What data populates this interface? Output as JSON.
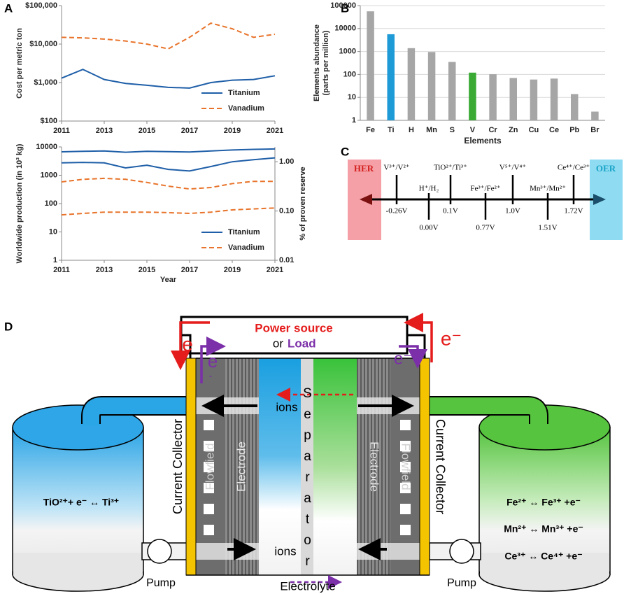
{
  "chart_data": [
    {
      "type": "line",
      "panel_label": "A",
      "ylabel": "Cost per metric ton",
      "x": [
        2011,
        2012,
        2013,
        2014,
        2015,
        2016,
        2017,
        2018,
        2019,
        2020,
        2021
      ],
      "xlim": [
        2011,
        2021
      ],
      "xticks": [
        2011,
        2013,
        2015,
        2017,
        2019,
        2021
      ],
      "ylim": [
        100,
        100000
      ],
      "log_y": true,
      "yticks": [
        {
          "value": 100,
          "label": "$100"
        },
        {
          "value": 1000,
          "label": "$1,000"
        },
        {
          "value": 10000,
          "label": "$10,000"
        },
        {
          "value": 100000,
          "label": "$100,000"
        }
      ],
      "legend": "lower right",
      "series": [
        {
          "name": "Titanium",
          "color": "#1f5fa8",
          "dashed": false,
          "values": [
            1300,
            2200,
            1200,
            950,
            850,
            750,
            720,
            1000,
            1150,
            1200,
            1500
          ]
        },
        {
          "name": "Vanadium",
          "color": "#e8732a",
          "dashed": true,
          "values": [
            15000,
            14500,
            13500,
            12000,
            10000,
            7500,
            15000,
            35000,
            25000,
            15000,
            18000
          ]
        }
      ]
    },
    {
      "type": "line",
      "xlabel": "Year",
      "ylabel": "Worldwide production (in 10³ kg)",
      "y2label": "% of proven reserve",
      "x": [
        2011,
        2012,
        2013,
        2014,
        2015,
        2016,
        2017,
        2018,
        2019,
        2020,
        2021
      ],
      "xlim": [
        2011,
        2021
      ],
      "xticks": [
        2011,
        2013,
        2015,
        2017,
        2019,
        2021
      ],
      "ylim": [
        1,
        10000
      ],
      "log_y": true,
      "yticks": [
        1,
        10,
        100,
        1000,
        10000
      ],
      "y2lim": [
        0.01,
        2
      ],
      "log_y2": true,
      "y2ticks": [
        0.01,
        {
          "value": 0.1,
          "label": "0.10"
        },
        {
          "value": 1,
          "label": "1.00"
        }
      ],
      "legend": "lower right",
      "series": [
        {
          "name": "Titanium",
          "color": "#1f5fa8",
          "dashed": false,
          "values": [
            6700,
            7000,
            7200,
            6500,
            7000,
            6800,
            6600,
            7200,
            7800,
            8200,
            8500
          ]
        },
        {
          "name": "Vanadium",
          "color": "#e8732a",
          "dashed": true,
          "values": [
            40,
            45,
            50,
            50,
            50,
            48,
            45,
            50,
            60,
            65,
            70
          ]
        },
        {
          "color": "#1f5fa8",
          "dashed": false,
          "axis": "y2",
          "values": [
            0.95,
            0.97,
            0.95,
            0.75,
            0.85,
            0.7,
            0.65,
            0.8,
            1.0,
            1.1,
            1.2
          ]
        },
        {
          "color": "#e8732a",
          "dashed": true,
          "axis": "y2",
          "values": [
            0.39,
            0.44,
            0.46,
            0.44,
            0.38,
            0.32,
            0.28,
            0.3,
            0.36,
            0.4,
            0.4
          ]
        }
      ]
    },
    {
      "type": "bar",
      "panel_label": "B",
      "ylabel": [
        "Elements abundance",
        "(parts per million)"
      ],
      "xlabel": "Elements",
      "categories": [
        "Fe",
        "Ti",
        "H",
        "Mn",
        "S",
        "V",
        "Cr",
        "Zn",
        "Cu",
        "Ce",
        "Pb",
        "Br"
      ],
      "values": [
        56300,
        5650,
        1400,
        950,
        350,
        120,
        102,
        70,
        60,
        66,
        14,
        2.4
      ],
      "colors": [
        "#a6a6a6",
        "#1e9ad6",
        "#a6a6a6",
        "#a6a6a6",
        "#a6a6a6",
        "#3aaa35",
        "#a6a6a6",
        "#a6a6a6",
        "#a6a6a6",
        "#a6a6a6",
        "#a6a6a6",
        "#a6a6a6"
      ],
      "ylim": [
        1,
        100000
      ],
      "log_y": true,
      "yticks": [
        1,
        10,
        100,
        1000,
        10000,
        100000
      ],
      "grid": true
    }
  ],
  "panel_c": {
    "label": "C",
    "her": "HER",
    "oer": "OER",
    "couples": [
      {
        "couple": "V³⁺/V²⁺",
        "potential": "-0.26V"
      },
      {
        "couple": "H⁺/H₂",
        "potential": "0.00V"
      },
      {
        "couple": "TiO²⁺/Ti³⁺",
        "potential": "0.1V"
      },
      {
        "couple": "Fe³⁺/Fe²⁺",
        "potential": "0.77V"
      },
      {
        "couple": "V⁵⁺/V⁴⁺",
        "potential": "1.0V"
      },
      {
        "couple": "Mn³⁺/Mn²⁺",
        "potential": "1.51V"
      },
      {
        "couple": "Ce⁴⁺/Ce³⁺",
        "potential": "1.72V"
      }
    ]
  },
  "panel_d": {
    "label": "D",
    "power_source": "Power source",
    "or": "or",
    "load": "Load",
    "e": "e",
    "minus": "-",
    "e_minus": "e⁻",
    "ions": "ions",
    "separator": "Separator",
    "current_collector": "Current Collector",
    "flowfield": "Flowfield",
    "electrode": "Electrode",
    "anolyte_reaction": "TiO²⁺+ e⁻ ↔ Ti³⁺",
    "catholyte_reactions": [
      "Fe²⁺ ↔ Fe³⁺ +e⁻",
      "Mn²⁺ ↔ Mn³⁺ +e⁻",
      "Ce³⁺ ↔ Ce⁴⁺ +e⁻"
    ],
    "pump": "Pump",
    "electrolyte": "Electrolyte"
  }
}
